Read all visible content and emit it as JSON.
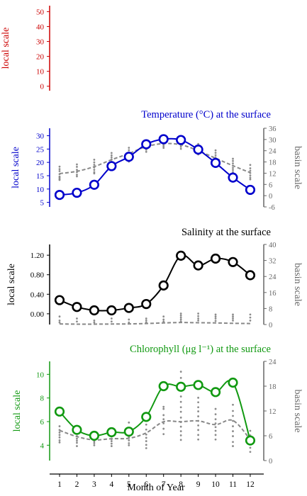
{
  "chart_data": [
    {
      "type": "line",
      "panel": "top",
      "title": "",
      "xlabel": "",
      "ylabel": "local scale",
      "ylim": [
        -3,
        54
      ],
      "yticks": [
        0,
        10,
        20,
        30,
        40,
        50
      ],
      "ytick_labels": [
        "0",
        "10",
        "20",
        "30",
        "40",
        "50"
      ],
      "color": "#cc0000",
      "series": []
    },
    {
      "type": "line",
      "panel": "temperature",
      "title": "Temperature (°C) at the surface",
      "xlabel": "",
      "ylabel": "local scale",
      "ylabel_right": "basin scale",
      "color": "#0000cc",
      "x": [
        1,
        2,
        3,
        4,
        5,
        6,
        7,
        8,
        9,
        10,
        11,
        12
      ],
      "ylim": [
        3.3,
        32.8
      ],
      "yticks": [
        5,
        10,
        15,
        20,
        25,
        30
      ],
      "ytick_labels": [
        "5",
        "10",
        "15",
        "20",
        "25",
        "30"
      ],
      "ylim_right": [
        -6,
        36
      ],
      "yticks_right": [
        -6,
        0,
        6,
        12,
        18,
        24,
        30,
        36
      ],
      "ytick_labels_right": [
        "-6",
        "0",
        "6",
        "12",
        "18",
        "24",
        "30",
        "36"
      ],
      "local_values": [
        7.8,
        8.6,
        11.6,
        18.6,
        22.1,
        26.8,
        28.7,
        28.4,
        24.8,
        19.8,
        14.3,
        9.7
      ],
      "basin_mean": [
        11.8,
        13,
        15.5,
        19.2,
        22.5,
        26.2,
        27.8,
        27.2,
        24,
        20,
        16,
        12.3
      ],
      "basin_points": [
        [
          1,
          15.5
        ],
        [
          1,
          14.2
        ],
        [
          1,
          13.1
        ],
        [
          1,
          11.5
        ],
        [
          1,
          10.2
        ],
        [
          1,
          9.6
        ],
        [
          1,
          8.9
        ],
        [
          1,
          8.4
        ],
        [
          2,
          16.7
        ],
        [
          2,
          15.4
        ],
        [
          2,
          13.8
        ],
        [
          2,
          12.6
        ],
        [
          2,
          11.2
        ],
        [
          2,
          10.3
        ],
        [
          3,
          19.2
        ],
        [
          3,
          17.8
        ],
        [
          3,
          16.5
        ],
        [
          3,
          15.1
        ],
        [
          3,
          13.8
        ],
        [
          3,
          12.6
        ],
        [
          3,
          11.9
        ],
        [
          4,
          22.8
        ],
        [
          4,
          21.5
        ],
        [
          4,
          20.4
        ],
        [
          4,
          19.3
        ],
        [
          4,
          18.2
        ],
        [
          4,
          17.1
        ],
        [
          4,
          16.6
        ],
        [
          5,
          25.6
        ],
        [
          5,
          24.3
        ],
        [
          5,
          23.1
        ],
        [
          5,
          22
        ],
        [
          5,
          20.8
        ],
        [
          5,
          19.8
        ],
        [
          5,
          18.2
        ],
        [
          6,
          29.1
        ],
        [
          6,
          28
        ],
        [
          6,
          27.1
        ],
        [
          6,
          26.2
        ],
        [
          6,
          25.4
        ],
        [
          6,
          24.5
        ],
        [
          6,
          23.4
        ],
        [
          7,
          30.4
        ],
        [
          7,
          29.6
        ],
        [
          7,
          28.8
        ],
        [
          7,
          28
        ],
        [
          7,
          27.2
        ],
        [
          7,
          26.4
        ],
        [
          7,
          25.5
        ],
        [
          8,
          30.8
        ],
        [
          8,
          29.4
        ],
        [
          8,
          28.6
        ],
        [
          8,
          27.9
        ],
        [
          8,
          27
        ],
        [
          8,
          26.1
        ],
        [
          8,
          25
        ],
        [
          9,
          27.6
        ],
        [
          9,
          26.8
        ],
        [
          9,
          25.7
        ],
        [
          9,
          24.8
        ],
        [
          9,
          24
        ],
        [
          9,
          23.1
        ],
        [
          9,
          22
        ],
        [
          10,
          24.2
        ],
        [
          10,
          22.9
        ],
        [
          10,
          21.6
        ],
        [
          10,
          20.4
        ],
        [
          10,
          19.3
        ],
        [
          10,
          18.1
        ],
        [
          10,
          17
        ],
        [
          11,
          19.7
        ],
        [
          11,
          18.5
        ],
        [
          11,
          17.2
        ],
        [
          11,
          16
        ],
        [
          11,
          14.8
        ],
        [
          11,
          13.7
        ],
        [
          11,
          12.6
        ],
        [
          12,
          16.4
        ],
        [
          12,
          14.6
        ],
        [
          12,
          13.3
        ],
        [
          12,
          12.1
        ],
        [
          12,
          10.8
        ],
        [
          12,
          9.6
        ],
        [
          12,
          8.7
        ]
      ]
    },
    {
      "type": "line",
      "panel": "salinity",
      "title": "Salinity at the surface",
      "xlabel": "",
      "ylabel": "local scale",
      "ylabel_right": "basin scale",
      "color": "#000000",
      "x": [
        1,
        2,
        3,
        4,
        5,
        6,
        7,
        8,
        9,
        10,
        11,
        12
      ],
      "ylim": [
        -0.22,
        1.42
      ],
      "yticks": [
        0.0,
        0.4,
        0.8,
        1.2
      ],
      "ytick_labels": [
        "0.00",
        "0.40",
        "0.80",
        "1.20"
      ],
      "ylim_right": [
        0,
        40
      ],
      "yticks_right": [
        0,
        8,
        16,
        24,
        32,
        40
      ],
      "ytick_labels_right": [
        "0",
        "8",
        "16",
        "24",
        "32",
        "40"
      ],
      "local_values": [
        0.28,
        0.14,
        0.07,
        0.07,
        0.12,
        0.2,
        0.58,
        1.19,
        0.99,
        1.13,
        1.06,
        0.79
      ],
      "basin_mean": [
        0.3,
        0.2,
        0.2,
        0.25,
        0.3,
        0.5,
        0.8,
        1,
        0.9,
        0.8,
        0.6,
        0.5
      ],
      "basin_points": [
        [
          1,
          4
        ],
        [
          1,
          2
        ],
        [
          1,
          1
        ],
        [
          2,
          3
        ],
        [
          2,
          1.5
        ],
        [
          3,
          2
        ],
        [
          3,
          1
        ],
        [
          4,
          3
        ],
        [
          4,
          1.5
        ],
        [
          5,
          2.5
        ],
        [
          5,
          1
        ],
        [
          6,
          3
        ],
        [
          6,
          2
        ],
        [
          6,
          1
        ],
        [
          7,
          4
        ],
        [
          7,
          2.5
        ],
        [
          7,
          1.5
        ],
        [
          8,
          5.5
        ],
        [
          8,
          4.5
        ],
        [
          8,
          3.5
        ],
        [
          8,
          2.5
        ],
        [
          8,
          1.5
        ],
        [
          9,
          5.5
        ],
        [
          9,
          4.2
        ],
        [
          9,
          3
        ],
        [
          9,
          2
        ],
        [
          10,
          5
        ],
        [
          10,
          4
        ],
        [
          10,
          3
        ],
        [
          10,
          1.8
        ],
        [
          11,
          5
        ],
        [
          11,
          4
        ],
        [
          11,
          3
        ],
        [
          11,
          2
        ],
        [
          12,
          5
        ],
        [
          12,
          3.5
        ],
        [
          12,
          2
        ]
      ]
    },
    {
      "type": "line",
      "panel": "chlorophyll",
      "title": "Chlorophyll (μg l⁻¹) at the surface",
      "xlabel": "Month of Year",
      "ylabel": "local scale",
      "ylabel_right": "basin scale",
      "color": "#119911",
      "x": [
        1,
        2,
        3,
        4,
        5,
        6,
        7,
        8,
        9,
        10,
        11,
        12
      ],
      "xticks": [
        1,
        2,
        3,
        4,
        5,
        6,
        7,
        8,
        9,
        10,
        11,
        12
      ],
      "ylim": [
        2.7,
        11.1
      ],
      "yticks": [
        4,
        6,
        8,
        10
      ],
      "ytick_labels": [
        "4",
        "6",
        "8",
        "10"
      ],
      "ylim_right": [
        0,
        24
      ],
      "yticks_right": [
        0,
        6,
        12,
        18,
        24
      ],
      "ytick_labels_right": [
        "0",
        "6",
        "12",
        "18",
        "24"
      ],
      "local_values": [
        6.85,
        5.3,
        4.8,
        5.1,
        5.15,
        6.4,
        9.0,
        8.95,
        9.1,
        8.5,
        9.3,
        4.4
      ],
      "basin_mean": [
        7.3,
        5.8,
        5,
        5.3,
        5.4,
        6.7,
        9.4,
        9.4,
        9.6,
        8.7,
        9.7,
        5.1
      ],
      "basin_points": [
        [
          1,
          8.3
        ],
        [
          1,
          7.4
        ],
        [
          1,
          6.8
        ],
        [
          1,
          6.2
        ],
        [
          1,
          5.6
        ],
        [
          1,
          4.9
        ],
        [
          1,
          4.4
        ],
        [
          2,
          6.6
        ],
        [
          2,
          5.9
        ],
        [
          2,
          5.3
        ],
        [
          2,
          4.8
        ],
        [
          2,
          4.3
        ],
        [
          2,
          3.5
        ],
        [
          3,
          5.6
        ],
        [
          3,
          5
        ],
        [
          3,
          4.6
        ],
        [
          3,
          4.2
        ],
        [
          3,
          3.7
        ],
        [
          4,
          6.5
        ],
        [
          4,
          5.8
        ],
        [
          4,
          5.2
        ],
        [
          4,
          4.7
        ],
        [
          4,
          4.1
        ],
        [
          4,
          3.5
        ],
        [
          5,
          9.2
        ],
        [
          5,
          6.3
        ],
        [
          5,
          5.6
        ],
        [
          5,
          4.9
        ],
        [
          5,
          4.2
        ],
        [
          5,
          3.7
        ],
        [
          6,
          9.6
        ],
        [
          6,
          8.7
        ],
        [
          6,
          7.5
        ],
        [
          6,
          6.3
        ],
        [
          6,
          5.5
        ],
        [
          6,
          4.7
        ],
        [
          6,
          3.8
        ],
        [
          6,
          3
        ],
        [
          7,
          13
        ],
        [
          7,
          12.5
        ],
        [
          7,
          11
        ],
        [
          7,
          10
        ],
        [
          7,
          9
        ],
        [
          7,
          7.7
        ],
        [
          7,
          6.4
        ],
        [
          8,
          21.5
        ],
        [
          8,
          20
        ],
        [
          8,
          18.8
        ],
        [
          8,
          17
        ],
        [
          8,
          15.5
        ],
        [
          8,
          14.2
        ],
        [
          8,
          12.9
        ],
        [
          8,
          11.8
        ],
        [
          8,
          10.4
        ],
        [
          8,
          9.3
        ],
        [
          8,
          8.2
        ],
        [
          8,
          7.1
        ],
        [
          8,
          6.1
        ],
        [
          8,
          5
        ],
        [
          9,
          15.2
        ],
        [
          9,
          14.1
        ],
        [
          9,
          12.9
        ],
        [
          9,
          11.9
        ],
        [
          9,
          10.7
        ],
        [
          9,
          9.6
        ],
        [
          9,
          8.5
        ],
        [
          9,
          7.4
        ],
        [
          9,
          6.2
        ],
        [
          9,
          5.1
        ],
        [
          10,
          12.5
        ],
        [
          10,
          11.2
        ],
        [
          10,
          10
        ],
        [
          10,
          9
        ],
        [
          10,
          8.1
        ],
        [
          10,
          7.2
        ],
        [
          10,
          6.2
        ],
        [
          10,
          5.1
        ],
        [
          11,
          13.5
        ],
        [
          11,
          12
        ],
        [
          11,
          10.8
        ],
        [
          11,
          9.6
        ],
        [
          11,
          8.3
        ],
        [
          11,
          7.1
        ],
        [
          11,
          5.9
        ],
        [
          11,
          4.5
        ],
        [
          11,
          3.5
        ],
        [
          12,
          7.2
        ],
        [
          12,
          6.1
        ],
        [
          12,
          5.1
        ],
        [
          12,
          4.1
        ],
        [
          12,
          3.1
        ],
        [
          12,
          2.1
        ]
      ]
    }
  ]
}
